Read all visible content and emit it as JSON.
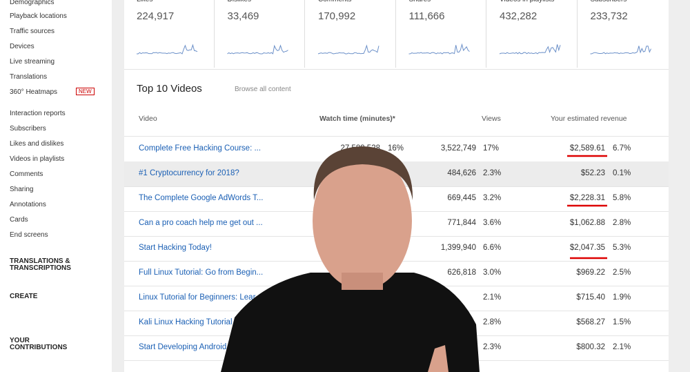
{
  "sidebar": {
    "items": [
      "Demographics",
      "Playback locations",
      "Traffic sources",
      "Devices",
      "Live streaming",
      "Translations",
      "360° Heatmaps",
      "Interaction reports",
      "Subscribers",
      "Likes and dislikes",
      "Videos in playlists",
      "Comments",
      "Sharing",
      "Annotations",
      "Cards",
      "End screens"
    ],
    "badge": "NEW",
    "sections": [
      "TRANSLATIONS & TRANSCRIPTIONS",
      "CREATE",
      "YOUR CONTRIBUTIONS"
    ]
  },
  "metrics": [
    {
      "label": "Likes *",
      "value": "224,917"
    },
    {
      "label": "Dislikes *",
      "value": "33,469"
    },
    {
      "label": "Comments *",
      "value": "170,992"
    },
    {
      "label": "Shares *",
      "value": "111,666"
    },
    {
      "label": "Videos in playlists *",
      "value": "432,282"
    },
    {
      "label": "Subscribers *",
      "value": "233,732"
    }
  ],
  "table": {
    "title": "Top 10 Videos",
    "link": "Browse all content",
    "headers": [
      "Video",
      "Watch time (minutes)*",
      "Views",
      "Your estimated revenue"
    ],
    "rows": [
      [
        "Complete Free Hacking Course: ...",
        "27,589,528",
        "16%",
        "3,522,749",
        "17%",
        "$2,589.61",
        "6.7%"
      ],
      [
        "#1 Cryptocurrency for 2018?",
        null,
        null,
        "484,626",
        "2.3%",
        "$52.23",
        "0.1%"
      ],
      [
        "The Complete Google AdWords T...",
        null,
        null,
        "669,445",
        "3.2%",
        "$2,228.31",
        "5.8%"
      ],
      [
        "Can a pro coach help me get out ...",
        null,
        null,
        "771,844",
        "3.6%",
        "$1,062.88",
        "2.8%"
      ],
      [
        "Start Hacking Today!",
        null,
        null,
        "1,399,940",
        "6.6%",
        "$2,047.35",
        "5.3%"
      ],
      [
        "Full Linux Tutorial: Go from Begin...",
        null,
        null,
        "626,818",
        "3.0%",
        "$969.22",
        "2.5%"
      ],
      [
        "Linux Tutorial for Beginners: Lear...",
        null,
        null,
        null,
        "2.1%",
        "$715.40",
        "1.9%"
      ],
      [
        "Kali Linux Hacking Tutorial I...",
        null,
        null,
        null,
        "2.8%",
        "$568.27",
        "1.5%"
      ],
      [
        "Start Developing Android...",
        null,
        null,
        null,
        "2.3%",
        "$800.32",
        "2.1%"
      ]
    ]
  }
}
